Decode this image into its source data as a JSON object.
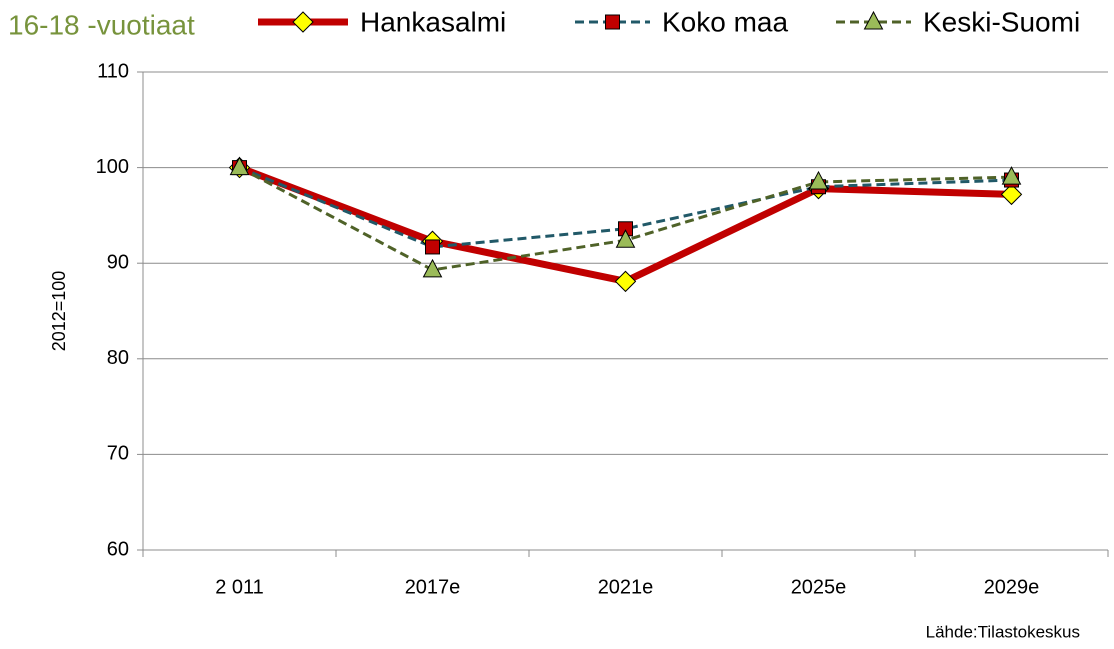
{
  "chart_data": {
    "type": "line",
    "title": "16-18 -vuotiaat",
    "y_label": "2012=100",
    "source": "Lähde:Tilastokeskus",
    "categories": [
      "2 011",
      "2017e",
      "2021e",
      "2025e",
      "2029e"
    ],
    "series": [
      {
        "name": "Hankasalmi",
        "color": "#c00000",
        "marker": "diamond",
        "marker_color": "#ffff00",
        "dashed": false,
        "values": [
          100,
          92.3,
          88.1,
          97.8,
          97.2
        ]
      },
      {
        "name": "Koko maa",
        "color": "#215968",
        "marker": "square",
        "marker_color": "#c00000",
        "dashed": true,
        "values": [
          100,
          91.7,
          93.6,
          98,
          98.7
        ]
      },
      {
        "name": "Keski-Suomi",
        "color": "#4f6228",
        "marker": "triangle",
        "marker_color": "#9bbb59",
        "dashed": true,
        "values": [
          100,
          89.3,
          92.4,
          98.5,
          99
        ]
      }
    ],
    "ylim": [
      60,
      110
    ],
    "yticks": [
      60,
      70,
      80,
      90,
      100,
      110
    ],
    "grid": true
  }
}
